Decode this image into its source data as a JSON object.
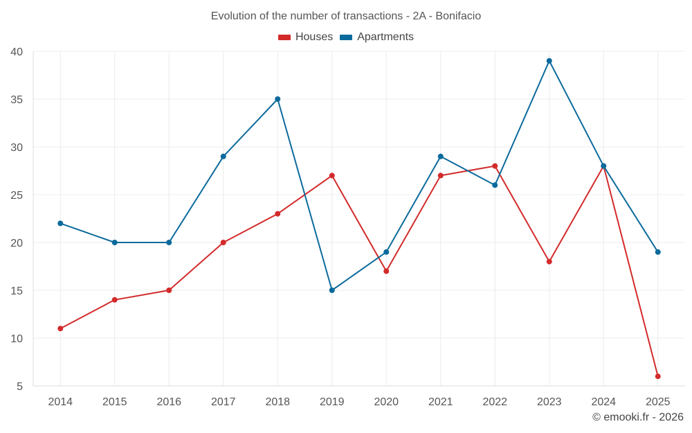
{
  "chart_data": {
    "type": "line",
    "title": "Evolution of the number of transactions - 2A - Bonifacio",
    "xlabel": "",
    "ylabel": "",
    "categories": [
      "2014",
      "2015",
      "2016",
      "2017",
      "2018",
      "2019",
      "2020",
      "2021",
      "2022",
      "2023",
      "2024",
      "2025"
    ],
    "ylim": [
      5,
      40
    ],
    "yticks": [
      5,
      10,
      15,
      20,
      25,
      30,
      35,
      40
    ],
    "grid": true,
    "legend_position": "top-center",
    "series": [
      {
        "name": "Houses",
        "color": "#d32a2a",
        "values": [
          11,
          14,
          15,
          20,
          23,
          27,
          17,
          27,
          28,
          18,
          28,
          6
        ]
      },
      {
        "name": "Apartments",
        "color": "#0b6a9c",
        "values": [
          22,
          20,
          20,
          29,
          35,
          15,
          19,
          29,
          26,
          39,
          28,
          19
        ]
      }
    ]
  },
  "footer": {
    "credit": "© emooki.fr - 2026"
  }
}
